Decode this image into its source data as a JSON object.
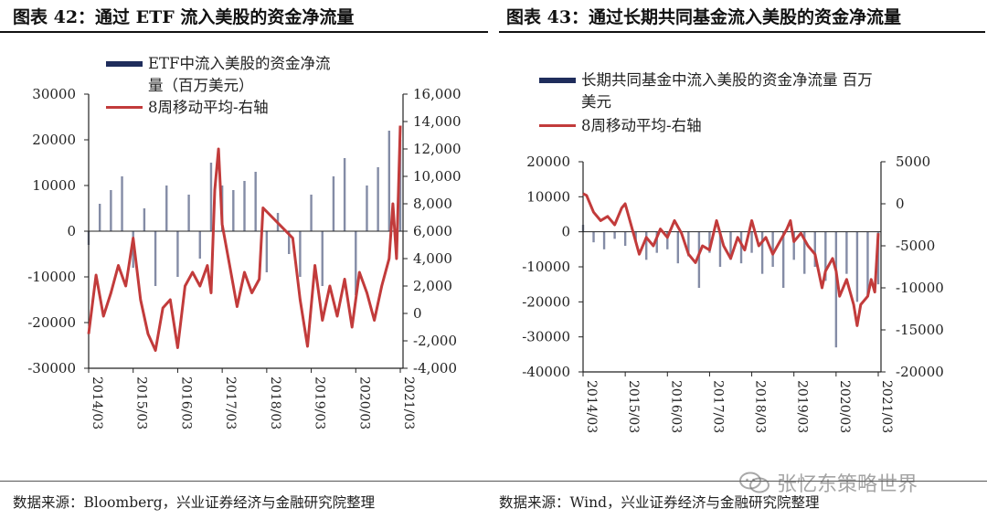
{
  "figures": [
    {
      "title": "图表 42：通过 ETF 流入美股的资金净流量",
      "legend_bar": "ETF中流入美股的资金净流\n量（百万美元）",
      "legend_line": "8周移动平均-右轴",
      "source": "数据来源：Bloomberg，兴业证券经济与金融研究院整理"
    },
    {
      "title": "图表 43：通过长期共同基金流入美股的资金净流量",
      "legend_bar": "长期共同基金中流入美股的资金净流量 百万\n美元",
      "legend_line": "8周移动平均-右轴",
      "source": "数据来源：Wind，兴业证券经济与金融研究院整理"
    }
  ],
  "watermark": "张忆东策略世界",
  "colors": {
    "bar": "#1f2d5c",
    "line": "#c23b3b",
    "axis": "#222222"
  },
  "chart_data": [
    {
      "type": "bar+line",
      "x_ticks": [
        "2014/03",
        "2015/03",
        "2016/03",
        "2017/03",
        "2018/03",
        "2019/03",
        "2020/03",
        "2021/03"
      ],
      "x_range": [
        "2014-03",
        "2021-03"
      ],
      "left_axis": {
        "ticks": [
          "30000",
          "20000",
          "10000",
          "0",
          "-10000",
          "-20000",
          "-30000"
        ],
        "ylim": [
          -30000,
          30000
        ]
      },
      "right_axis": {
        "ticks": [
          "16,000",
          "14,000",
          "12,000",
          "10,000",
          "8,000",
          "6,000",
          "4,000",
          "2,000",
          "0",
          "-2,000",
          "-4,000"
        ],
        "ylim": [
          -4000,
          16000
        ]
      },
      "bar_series": {
        "name": "ETF中流入美股的资金净流量（百万美元）",
        "axis": "left",
        "points": [
          [
            "2014-03",
            -3000
          ],
          [
            "2014-06",
            6000
          ],
          [
            "2014-09",
            9000
          ],
          [
            "2014-12",
            12000
          ],
          [
            "2015-03",
            -8000
          ],
          [
            "2015-06",
            5000
          ],
          [
            "2015-09",
            -12000
          ],
          [
            "2015-12",
            10000
          ],
          [
            "2016-03",
            -10000
          ],
          [
            "2016-06",
            8000
          ],
          [
            "2016-09",
            -6000
          ],
          [
            "2016-12",
            15000
          ],
          [
            "2017-03",
            10000
          ],
          [
            "2017-06",
            9000
          ],
          [
            "2017-09",
            11000
          ],
          [
            "2017-12",
            13000
          ],
          [
            "2018-03",
            -9000
          ],
          [
            "2018-06",
            4000
          ],
          [
            "2018-09",
            -5000
          ],
          [
            "2018-12",
            -10000
          ],
          [
            "2019-03",
            8000
          ],
          [
            "2019-06",
            -12000
          ],
          [
            "2019-09",
            12000
          ],
          [
            "2019-12",
            16000
          ],
          [
            "2020-03",
            -14000
          ],
          [
            "2020-06",
            10000
          ],
          [
            "2020-09",
            14000
          ],
          [
            "2020-12",
            22000
          ],
          [
            "2021-03",
            20000
          ]
        ]
      },
      "line_series": {
        "name": "8周移动平均-右轴",
        "axis": "right",
        "points": [
          [
            "2014-03",
            -1500
          ],
          [
            "2014-05",
            2800
          ],
          [
            "2014-07",
            -200
          ],
          [
            "2014-09",
            1500
          ],
          [
            "2014-11",
            3500
          ],
          [
            "2015-01",
            2000
          ],
          [
            "2015-03",
            5500
          ],
          [
            "2015-05",
            1000
          ],
          [
            "2015-07",
            -1500
          ],
          [
            "2015-09",
            -2700
          ],
          [
            "2015-11",
            400
          ],
          [
            "2016-01",
            1000
          ],
          [
            "2016-03",
            -2500
          ],
          [
            "2016-05",
            2000
          ],
          [
            "2016-07",
            3000
          ],
          [
            "2016-09",
            2000
          ],
          [
            "2016-11",
            3500
          ],
          [
            "2016-12",
            1500
          ],
          [
            "2017-01",
            9000
          ],
          [
            "2017-02",
            12000
          ],
          [
            "2017-03",
            6500
          ],
          [
            "2017-05",
            3500
          ],
          [
            "2017-07",
            500
          ],
          [
            "2017-09",
            3000
          ],
          [
            "2017-11",
            1500
          ],
          [
            "2018-01",
            2500
          ],
          [
            "2018-02",
            7700
          ],
          [
            "2018-10",
            5500
          ],
          [
            "2018-12",
            1000
          ],
          [
            "2019-02",
            -2400
          ],
          [
            "2019-04",
            3500
          ],
          [
            "2019-06",
            -500
          ],
          [
            "2019-08",
            2000
          ],
          [
            "2019-10",
            -200
          ],
          [
            "2019-12",
            2500
          ],
          [
            "2020-02",
            -1000
          ],
          [
            "2020-04",
            3000
          ],
          [
            "2020-06",
            1500
          ],
          [
            "2020-08",
            -500
          ],
          [
            "2020-10",
            2000
          ],
          [
            "2020-12",
            4000
          ],
          [
            "2021-01",
            8000
          ],
          [
            "2021-02",
            4000
          ],
          [
            "2021-03",
            13700
          ]
        ]
      }
    },
    {
      "type": "bar+line",
      "x_ticks": [
        "2014/03",
        "2015/03",
        "2016/03",
        "2017/03",
        "2018/03",
        "2019/03",
        "2020/03",
        "2021/03"
      ],
      "x_range": [
        "2014-03",
        "2021-03"
      ],
      "left_axis": {
        "ticks": [
          "20000",
          "10000",
          "0",
          "-10000",
          "-20000",
          "-30000",
          "-40000"
        ],
        "ylim": [
          -40000,
          20000
        ]
      },
      "right_axis": {
        "ticks": [
          "5000",
          "0",
          "-5000",
          "-10000",
          "-15000",
          "-20000"
        ],
        "ylim": [
          -20000,
          5000
        ]
      },
      "bar_series": {
        "name": "长期共同基金中流入美股的资金净流量 百万美元",
        "axis": "left",
        "points": [
          [
            "2014-03",
            2000
          ],
          [
            "2014-06",
            -3000
          ],
          [
            "2014-09",
            -5000
          ],
          [
            "2014-12",
            -2000
          ],
          [
            "2015-03",
            -4000
          ],
          [
            "2015-06",
            -3000
          ],
          [
            "2015-09",
            -8000
          ],
          [
            "2015-12",
            -6000
          ],
          [
            "2016-03",
            -5000
          ],
          [
            "2016-06",
            -9000
          ],
          [
            "2016-09",
            -7000
          ],
          [
            "2016-12",
            -16000
          ],
          [
            "2017-03",
            -6000
          ],
          [
            "2017-06",
            -10000
          ],
          [
            "2017-09",
            -8000
          ],
          [
            "2017-12",
            -9000
          ],
          [
            "2018-03",
            -6000
          ],
          [
            "2018-06",
            -12000
          ],
          [
            "2018-09",
            -10000
          ],
          [
            "2018-12",
            -16000
          ],
          [
            "2019-03",
            -8000
          ],
          [
            "2019-06",
            -12000
          ],
          [
            "2019-09",
            -10000
          ],
          [
            "2019-12",
            -14000
          ],
          [
            "2020-03",
            -33000
          ],
          [
            "2020-06",
            -12000
          ],
          [
            "2020-09",
            -20000
          ],
          [
            "2020-12",
            -18000
          ],
          [
            "2021-03",
            -15000
          ]
        ]
      },
      "line_series": {
        "name": "8周移动平均-右轴",
        "axis": "right",
        "points": [
          [
            "2014-03",
            1200
          ],
          [
            "2014-04",
            1000
          ],
          [
            "2014-06",
            -1000
          ],
          [
            "2014-08",
            -2000
          ],
          [
            "2014-10",
            -1500
          ],
          [
            "2014-12",
            -2500
          ],
          [
            "2015-02",
            -500
          ],
          [
            "2015-03",
            0
          ],
          [
            "2015-05",
            -3000
          ],
          [
            "2015-07",
            -6000
          ],
          [
            "2015-09",
            -4000
          ],
          [
            "2015-11",
            -5000
          ],
          [
            "2016-01",
            -3000
          ],
          [
            "2016-03",
            -4000
          ],
          [
            "2016-05",
            -2000
          ],
          [
            "2016-07",
            -3500
          ],
          [
            "2016-09",
            -6000
          ],
          [
            "2016-11",
            -7000
          ],
          [
            "2017-01",
            -5000
          ],
          [
            "2017-03",
            -5500
          ],
          [
            "2017-05",
            -2000
          ],
          [
            "2017-07",
            -5000
          ],
          [
            "2017-09",
            -6500
          ],
          [
            "2017-11",
            -4000
          ],
          [
            "2018-01",
            -5500
          ],
          [
            "2018-03",
            -2000
          ],
          [
            "2018-05",
            -5000
          ],
          [
            "2018-07",
            -4000
          ],
          [
            "2018-09",
            -6000
          ],
          [
            "2018-11",
            -4500
          ],
          [
            "2019-01",
            -3000
          ],
          [
            "2019-02",
            -2000
          ],
          [
            "2019-03",
            -4500
          ],
          [
            "2019-05",
            -3500
          ],
          [
            "2019-07",
            -5000
          ],
          [
            "2019-09",
            -6000
          ],
          [
            "2019-11",
            -10000
          ],
          [
            "2019-12",
            -8000
          ],
          [
            "2020-02",
            -6500
          ],
          [
            "2020-03",
            -8000
          ],
          [
            "2020-04",
            -11000
          ],
          [
            "2020-06",
            -9000
          ],
          [
            "2020-08",
            -12000
          ],
          [
            "2020-09",
            -14500
          ],
          [
            "2020-10",
            -12000
          ],
          [
            "2020-12",
            -11000
          ],
          [
            "2021-01",
            -9000
          ],
          [
            "2021-02",
            -10500
          ],
          [
            "2021-03",
            -3500
          ]
        ]
      }
    }
  ]
}
